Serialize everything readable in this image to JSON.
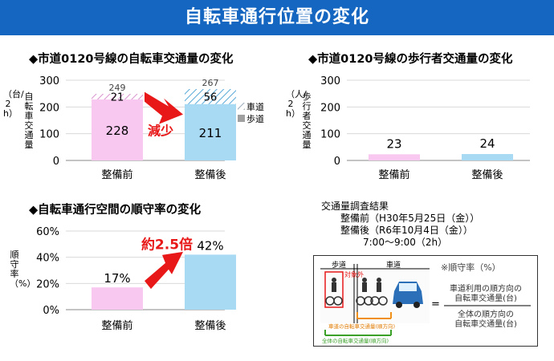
{
  "header": {
    "title": "自転車通行位置の変化"
  },
  "sections": {
    "bike_volume_title": "◆市道0120号線の自転車交通量の変化",
    "ped_volume_title": "◆市道0120号線の歩行者交通量の変化",
    "compliance_title": "◆自転車通行空間の順守率の変化"
  },
  "bike_chart": {
    "unit_label": "（台/2h）",
    "axis_title": "自転車交通量",
    "legend": {
      "roadway": "車道",
      "sidewalk": "歩道"
    },
    "annotation": "減少"
  },
  "ped_chart": {
    "unit_label": "（人/2h）",
    "axis_title": "歩行者交通量"
  },
  "compliance_chart": {
    "axis_title": "順守率（%）",
    "annotation": "約2.5倍"
  },
  "survey": {
    "title": "交通量調査結果",
    "before": "整備前（H30年5月25日（金））",
    "after": "整備後（R6年10月4日（金））",
    "time": "7:00～9:00（2h）"
  },
  "diagram": {
    "sidewalk_label": "歩道",
    "roadway_label": "車道",
    "excluded_label": "対象外",
    "roadway_bikes_caption": "車道の自転車交通量(順方向)",
    "total_bikes_caption": "全体の自転車交通量(順方向)",
    "formula_title": "※順守率（%）",
    "numerator_line1": "車道利用の順方向の",
    "numerator_line2": "自転車交通量(台)",
    "equals": "=",
    "denominator_line1": "全体の順方向の",
    "denominator_line2": "自転車交通量(台)"
  },
  "colors": {
    "before": "#f8c8f0",
    "after": "#a8daf4",
    "arrow": "#e81818",
    "header": "#1566c0",
    "accent_red": "#e81818"
  },
  "chart_data": [
    {
      "type": "bar",
      "stacked": true,
      "categories": [
        "整備前",
        "整備後"
      ],
      "series": [
        {
          "name": "歩道",
          "values": [
            228,
            211
          ]
        },
        {
          "name": "車道",
          "values": [
            21,
            56
          ]
        }
      ],
      "totals": [
        249,
        267
      ],
      "ylim": [
        0,
        300
      ],
      "yticks": [
        0,
        100,
        200,
        300
      ],
      "grid": true
    },
    {
      "type": "bar",
      "categories": [
        "整備前",
        "整備後"
      ],
      "values": [
        23,
        24
      ],
      "ylim": [
        0,
        300
      ],
      "yticks": [
        0,
        100,
        200,
        300
      ],
      "grid": true
    },
    {
      "type": "bar",
      "categories": [
        "整備前",
        "整備後"
      ],
      "values": [
        17,
        42
      ],
      "value_labels": [
        "17%",
        "42%"
      ],
      "ylim": [
        0,
        60
      ],
      "yticks": [
        0,
        20,
        40,
        60
      ],
      "ytick_labels": [
        "0%",
        "20%",
        "40%",
        "60%"
      ],
      "grid": true
    }
  ]
}
